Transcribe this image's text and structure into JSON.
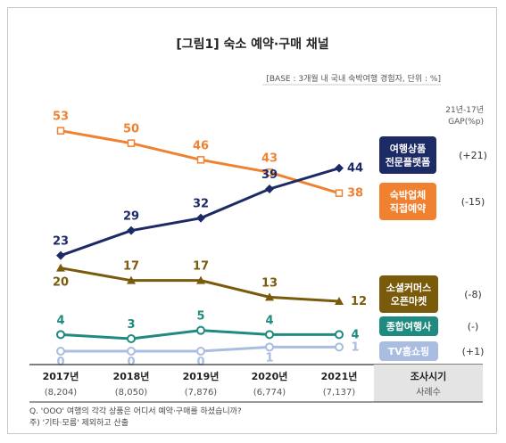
{
  "chart_data": {
    "type": "line",
    "title": "[그림1] 숙소 예약·구매 채널",
    "base_note": "[BASE : 3개월 내 국내 숙박여행 경험자, 단위 : %]",
    "gap_header": [
      "21년-17년",
      "GAP(%p)"
    ],
    "categories": [
      "2017년",
      "2018년",
      "2019년",
      "2020년",
      "2021년"
    ],
    "counts": [
      "(8,204)",
      "(8,050)",
      "(7,876)",
      "(6,774)",
      "(7,137)"
    ],
    "axis_header": {
      "label": "조사시기",
      "sub": "사례수"
    },
    "series": [
      {
        "name": "여행상품 전문플랫폼",
        "label_lines": [
          "여행상품",
          "전문플랫폼"
        ],
        "values": [
          23,
          29,
          32,
          39,
          44
        ],
        "gap": "(+21)",
        "color": "#1c2a66",
        "marker": "diamond"
      },
      {
        "name": "숙박업체 직접예약",
        "label_lines": [
          "숙박업체",
          "직접예약"
        ],
        "values": [
          53,
          50,
          46,
          43,
          38
        ],
        "gap": "(-15)",
        "color": "#f08130",
        "marker": "square"
      },
      {
        "name": "소셜커머스 오픈마켓",
        "label_lines": [
          "소셜커머스",
          "오픈마켓"
        ],
        "values": [
          20,
          17,
          17,
          13,
          12
        ],
        "gap": "(-8)",
        "color": "#7a5a0b",
        "marker": "triangle"
      },
      {
        "name": "종합여행사",
        "label_lines": [
          "종합여행사"
        ],
        "values": [
          4,
          3,
          5,
          4,
          4
        ],
        "gap": "(-)",
        "color": "#1f8b80",
        "marker": "circle"
      },
      {
        "name": "TV홈쇼핑",
        "label_lines": [
          "TV홈쇼핑"
        ],
        "values": [
          0,
          0,
          0,
          1,
          1
        ],
        "gap": "(+1)",
        "color": "#a9bde0",
        "marker": "circle"
      }
    ],
    "notes": [
      "Q. 'OOO' 여행의 각각 상품은 어디서 예약·구매를 하셨습니까?",
      "주) '기타·모름' 제외하고 산출"
    ]
  }
}
